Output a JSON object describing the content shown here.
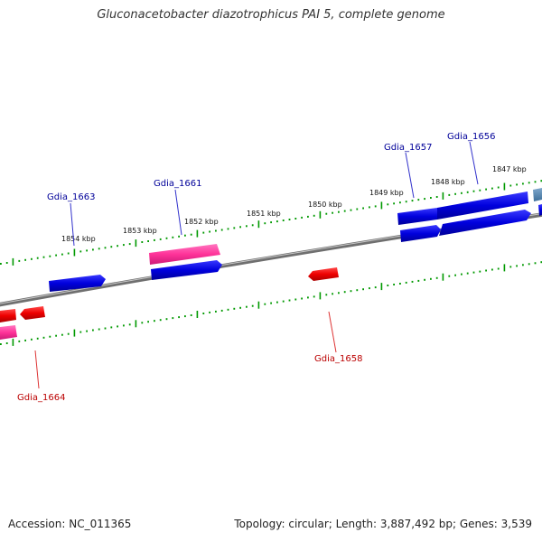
{
  "title": "Gluconacetobacter diazotrophicus PAI 5, complete genome",
  "footer": {
    "accession": "Accession: NC_011365",
    "summary": "Topology: circular; Length: 3,887,492 bp; Genes: 3,539"
  },
  "colors": {
    "forward_gene": "#0000cc",
    "reverse_gene": "#dd0000",
    "pink_gene": "#ff3399",
    "forward_label": "#000099",
    "reverse_label": "#bb0000",
    "tick": "#009900",
    "backbone": "#888888"
  },
  "scale_labels": [
    {
      "text": "1854 kbp"
    },
    {
      "text": "1853 kbp"
    },
    {
      "text": "1852 kbp"
    },
    {
      "text": "1851 kbp"
    },
    {
      "text": "1850 kbp"
    },
    {
      "text": "1849 kbp"
    },
    {
      "text": "1848 kbp"
    },
    {
      "text": "1847 kbp"
    }
  ],
  "gene_labels": {
    "upper": [
      {
        "text": "Gdia_1663"
      },
      {
        "text": "Gdia_1661"
      },
      {
        "text": "Gdia_1657"
      },
      {
        "text": "Gdia_1656"
      }
    ],
    "lower": [
      {
        "text": "Gdia_1664"
      },
      {
        "text": "Gdia_1658"
      }
    ]
  }
}
